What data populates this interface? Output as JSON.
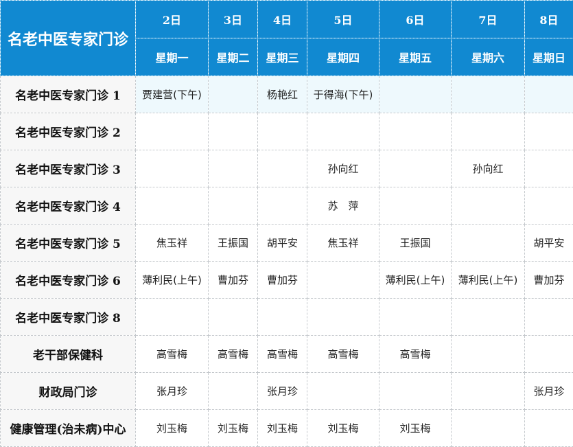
{
  "title": "名老中医专家门诊",
  "dates": [
    "2日",
    "3日",
    "4日",
    "5日",
    "6日",
    "7日",
    "8日"
  ],
  "weekdays": [
    "星期一",
    "星期二",
    "星期三",
    "星期四",
    "星期五",
    "星期六",
    "星期日"
  ],
  "rows": [
    {
      "dept": "名老中医专家门诊 1",
      "cells": [
        "贾建营(下午)",
        "",
        "杨艳红",
        "于得海(下午)",
        "",
        "",
        ""
      ]
    },
    {
      "dept": "名老中医专家门诊 2",
      "cells": [
        "",
        "",
        "",
        "",
        "",
        "",
        ""
      ]
    },
    {
      "dept": "名老中医专家门诊 3",
      "cells": [
        "",
        "",
        "",
        "孙向红",
        "",
        "孙向红",
        ""
      ]
    },
    {
      "dept": "名老中医专家门诊 4",
      "cells": [
        "",
        "",
        "",
        "苏　萍",
        "",
        "",
        ""
      ]
    },
    {
      "dept": "名老中医专家门诊 5",
      "cells": [
        "焦玉祥",
        "王振国",
        "胡平安",
        "焦玉祥",
        "王振国",
        "",
        "胡平安"
      ]
    },
    {
      "dept": "名老中医专家门诊 6",
      "cells": [
        "薄利民(上午)",
        "曹加芬",
        "曹加芬",
        "",
        "薄利民(上午)",
        "薄利民(上午)",
        "曹加芬"
      ]
    },
    {
      "dept": "名老中医专家门诊 8",
      "cells": [
        "",
        "",
        "",
        "",
        "",
        "",
        ""
      ]
    },
    {
      "dept": "老干部保健科",
      "cells": [
        "高雪梅",
        "高雪梅",
        "高雪梅",
        "高雪梅",
        "高雪梅",
        "",
        ""
      ]
    },
    {
      "dept": "财政局门诊",
      "cells": [
        "张月珍",
        "",
        "张月珍",
        "",
        "",
        "",
        "张月珍"
      ]
    },
    {
      "dept": "健康管理(治未病)中心",
      "cells": [
        "刘玉梅",
        "刘玉梅",
        "刘玉梅",
        "刘玉梅",
        "刘玉梅",
        "",
        ""
      ]
    }
  ],
  "colors": {
    "header": "#1189d1",
    "first_column": "#f7f7f7",
    "highlight_row": "#eef9fd"
  }
}
